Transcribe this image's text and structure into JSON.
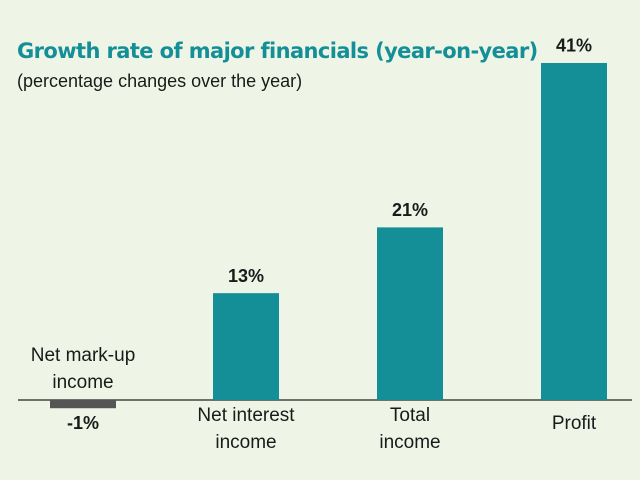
{
  "chart_data": {
    "type": "bar",
    "title": "Growth rate of major financials (year-on-year)",
    "subtitle": "(percentage changes over the year)",
    "categories": [
      "Net mark-up income",
      "Net interest income",
      "Total income",
      "Profit"
    ],
    "values": [
      -1,
      13,
      21,
      41
    ],
    "value_labels": [
      "-1%",
      "13%",
      "21%",
      "41%"
    ],
    "color": "#148f98",
    "negative_color": "#555555"
  }
}
